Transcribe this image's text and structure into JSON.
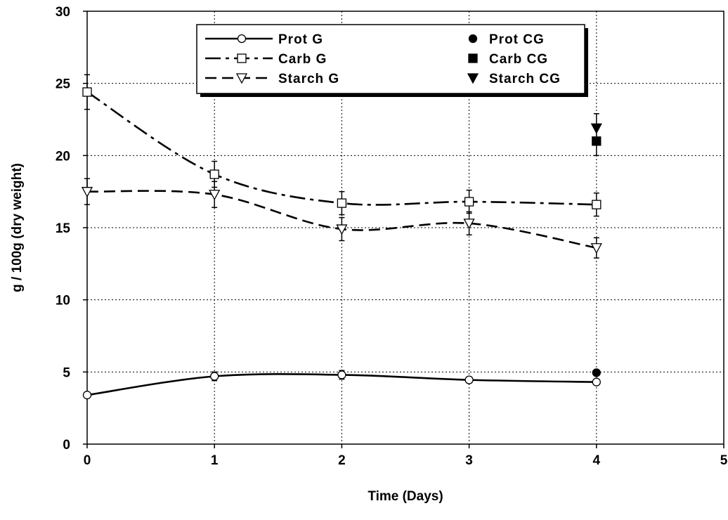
{
  "chart_data": {
    "type": "line",
    "title": "",
    "xlabel": "Time (Days)",
    "ylabel": "g / 100g (dry weight)",
    "xlim": [
      0,
      5
    ],
    "ylim": [
      0,
      30
    ],
    "xticks": [
      "0",
      "1",
      "2",
      "3",
      "4",
      "5"
    ],
    "yticks": [
      "0",
      "5",
      "10",
      "15",
      "20",
      "25",
      "30"
    ],
    "grid": true,
    "legend_position": "top-center",
    "series": [
      {
        "name": "Prot G",
        "line_style": "solid",
        "marker": "open-circle",
        "x": [
          0,
          1,
          2,
          3,
          4
        ],
        "y": [
          3.4,
          4.7,
          4.8,
          4.45,
          4.3
        ],
        "error": [
          0.1,
          0.3,
          0.3,
          0.2,
          0.2
        ]
      },
      {
        "name": "Carb G",
        "line_style": "dash-dot",
        "marker": "open-square",
        "x": [
          0,
          1,
          2,
          3,
          4
        ],
        "y": [
          24.4,
          18.7,
          16.7,
          16.8,
          16.6
        ],
        "error": [
          1.2,
          0.9,
          0.8,
          0.8,
          0.8
        ]
      },
      {
        "name": "Starch G",
        "line_style": "dashed",
        "marker": "open-triangle-down",
        "x": [
          0,
          1,
          2,
          3,
          4
        ],
        "y": [
          17.5,
          17.3,
          14.9,
          15.3,
          13.6
        ],
        "error": [
          0.9,
          0.9,
          0.8,
          0.8,
          0.7
        ]
      },
      {
        "name": "Prot CG",
        "line_style": "none",
        "marker": "filled-circle",
        "x": [
          4
        ],
        "y": [
          4.95
        ],
        "error": [
          0
        ]
      },
      {
        "name": "Carb CG",
        "line_style": "none",
        "marker": "filled-square",
        "x": [
          4
        ],
        "y": [
          21.0
        ],
        "error": [
          1.0
        ]
      },
      {
        "name": "Starch CG",
        "line_style": "none",
        "marker": "filled-triangle-down",
        "x": [
          4
        ],
        "y": [
          21.9
        ],
        "error": [
          1.0
        ]
      }
    ],
    "colors": {
      "axis": "#000000",
      "grid": "#000000",
      "series": "#000000",
      "background": "#ffffff"
    }
  }
}
